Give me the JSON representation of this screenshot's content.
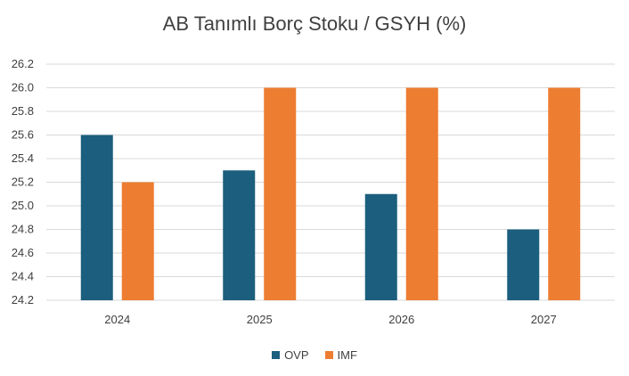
{
  "chart_data": {
    "type": "bar",
    "title": "AB Tanımlı Borç Stoku / GSYH (%)",
    "xlabel": "",
    "ylabel": "",
    "categories": [
      "2024",
      "2025",
      "2026",
      "2027"
    ],
    "series": [
      {
        "name": "OVP",
        "color": "#1b5e7d",
        "values": [
          25.6,
          25.3,
          25.1,
          24.8
        ]
      },
      {
        "name": "IMF",
        "color": "#ed7d31",
        "values": [
          25.2,
          26.0,
          26.0,
          26.0
        ]
      }
    ],
    "ylim": [
      24.2,
      26.2
    ],
    "yticks": [
      "24.2",
      "24.4",
      "24.6",
      "24.8",
      "25.0",
      "25.2",
      "25.4",
      "25.6",
      "25.8",
      "26.0",
      "26.2"
    ],
    "grid": true,
    "gridColor": "#d9d9d9",
    "legend_position": "bottom"
  }
}
